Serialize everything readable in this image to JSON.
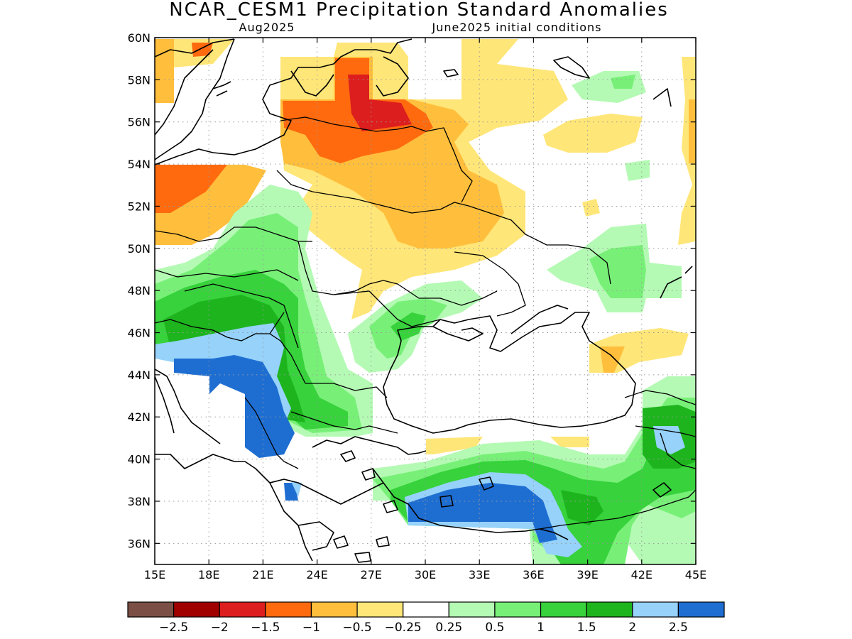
{
  "title": "NCAR_CESM1 Precipitation Standard Anomalies",
  "subtitle_left": "Aug2025",
  "subtitle_right": "June2025 initial conditions",
  "map": {
    "lon_range": [
      15,
      45
    ],
    "lat_range": [
      35,
      60
    ],
    "lon_ticks": [
      "15E",
      "18E",
      "21E",
      "24E",
      "27E",
      "30E",
      "33E",
      "36E",
      "39E",
      "42E",
      "45E"
    ],
    "lat_ticks": [
      "60N",
      "58N",
      "56N",
      "54N",
      "52N",
      "50N",
      "48N",
      "46N",
      "44N",
      "42N",
      "40N",
      "38N",
      "36N"
    ],
    "gridlines": "dotted"
  },
  "colorbar": {
    "colors": [
      "#7b4f45",
      "#a00000",
      "#dc1e1e",
      "#ff6a0f",
      "#ffbf3c",
      "#ffe678",
      "#ffffff",
      "#b4fab4",
      "#78f078",
      "#37d23c",
      "#1eb41e",
      "#96d2fa",
      "#1e6ed2"
    ],
    "labels": [
      "−2.5",
      "−2",
      "−1.5",
      "−1",
      "−0.5",
      "−0.25",
      "0.25",
      "0.5",
      "1",
      "1.5",
      "2",
      "2.5"
    ]
  }
}
